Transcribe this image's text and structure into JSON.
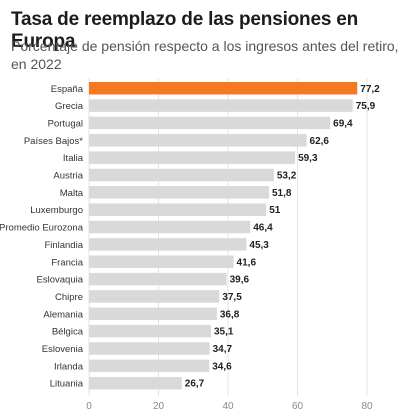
{
  "chart_data": {
    "type": "bar",
    "orientation": "horizontal",
    "title": "Tasa de reemplazo de las pensiones en Europa",
    "subtitle": "Porcentaje de pensión respecto a los ingresos antes del retiro, en 2022",
    "categories": [
      "España",
      "Grecia",
      "Portugal",
      "Países Bajos*",
      "Italia",
      "Austria",
      "Malta",
      "Luxemburgo",
      "Promedio Eurozona",
      "Finlandia",
      "Francia",
      "Eslovaquia",
      "Chipre",
      "Alemania",
      "Bélgica",
      "Eslovenia",
      "Irlanda",
      "Lituania"
    ],
    "values": [
      77.2,
      75.9,
      69.4,
      62.6,
      59.3,
      53.2,
      51.8,
      51,
      46.4,
      45.3,
      41.6,
      39.6,
      37.5,
      36.8,
      35.1,
      34.7,
      34.6,
      26.7
    ],
    "value_labels": [
      "77,2",
      "75,9",
      "69,4",
      "62,6",
      "59,3",
      "53,2",
      "51,8",
      "51",
      "46,4",
      "45,3",
      "41,6",
      "39,6",
      "37,5",
      "36,8",
      "35,1",
      "34,7",
      "34,6",
      "26,7"
    ],
    "highlight_index": 0,
    "xticks": [
      0,
      20,
      40,
      60,
      80
    ],
    "xlim": [
      0,
      80
    ],
    "grid": true,
    "xlabel": "",
    "ylabel": ""
  },
  "colors": {
    "bar": "#d9d9d9",
    "highlight": "#f47920",
    "grid": "#e3e3e3",
    "tick": "#888888"
  }
}
